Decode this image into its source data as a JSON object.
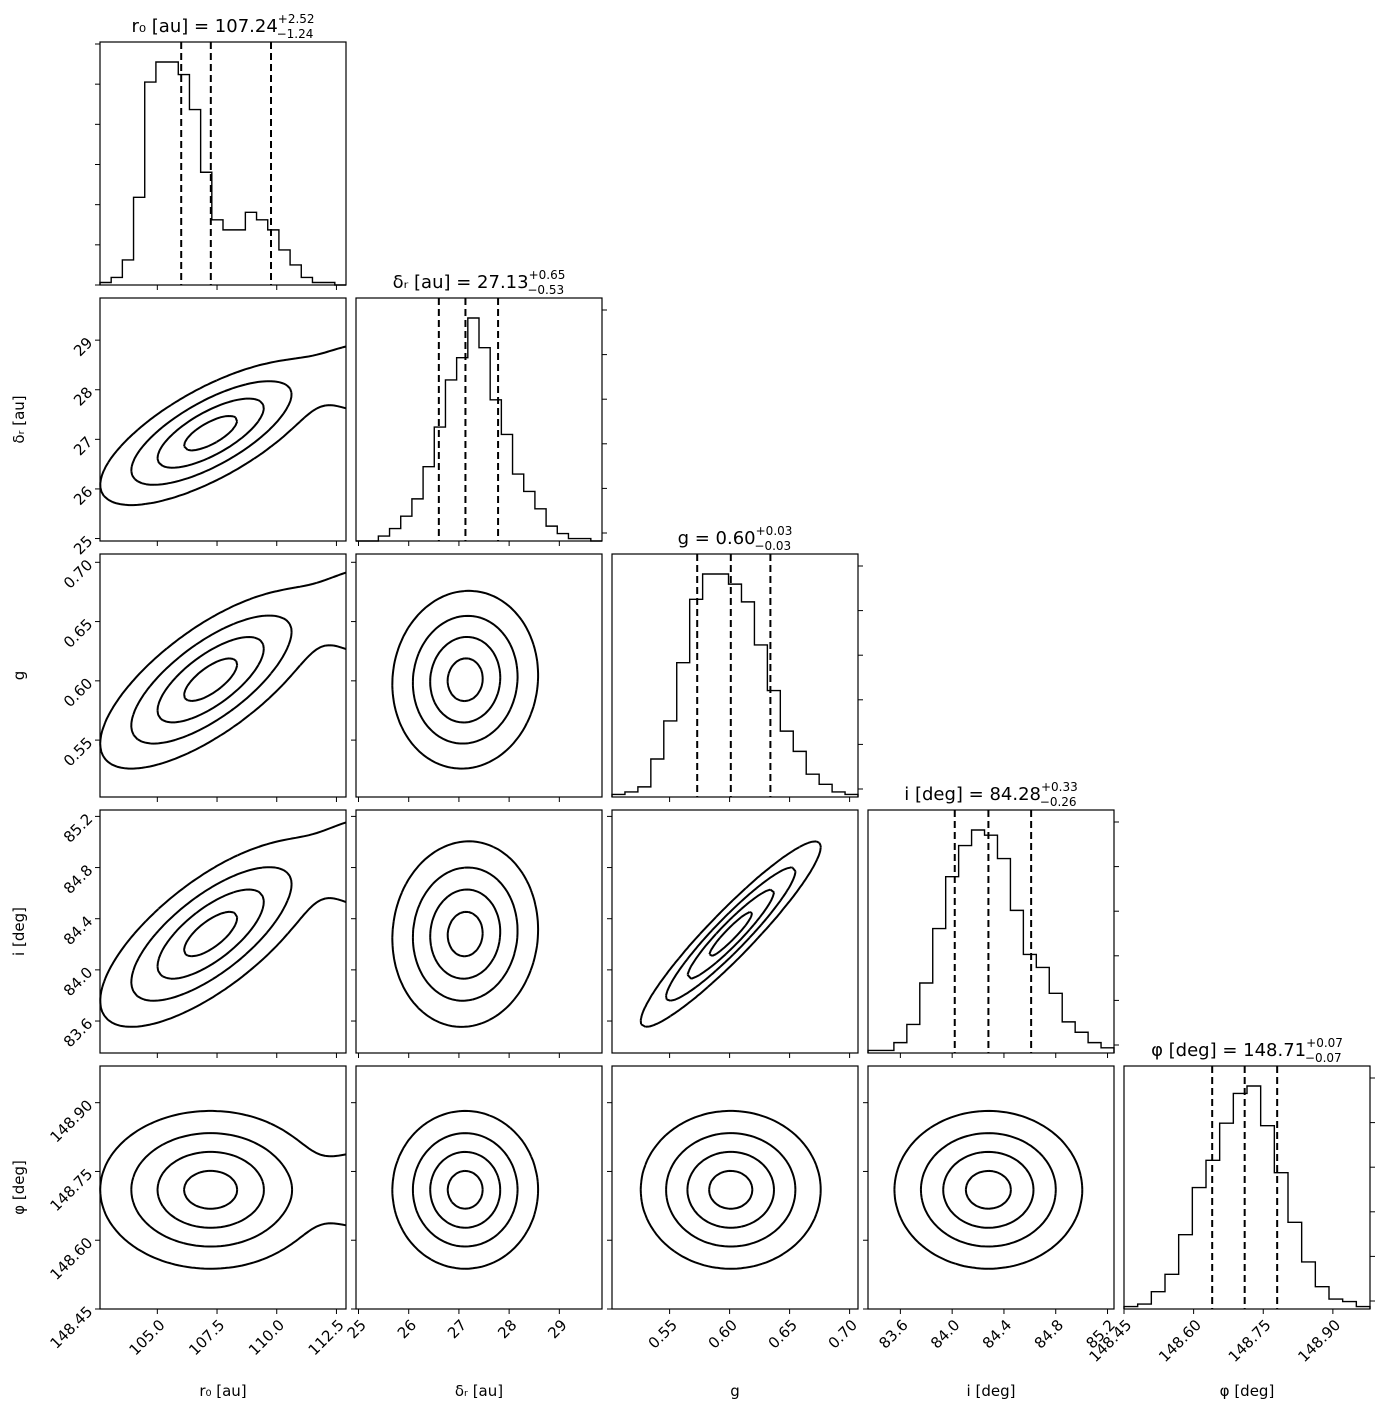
{
  "chart_data": {
    "type": "corner",
    "params": [
      {
        "title": "r₀ [au] = 107.24",
        "sup": "+2.52",
        "sub": "−1.24",
        "xlabel": "r₀ [au]",
        "ylabel": "",
        "range": [
          102.6,
          112.9
        ],
        "ticks": [
          105.0,
          107.5,
          110.0,
          112.5
        ],
        "tick_labels": [
          "105.0",
          "107.5",
          "110.0",
          "112.5"
        ],
        "quantiles": [
          106.0,
          107.24,
          109.76
        ],
        "hist": [
          1,
          3,
          10,
          35,
          81,
          89,
          89,
          84,
          70,
          45,
          26,
          22,
          22,
          29,
          26,
          22,
          14,
          8,
          3,
          1,
          1,
          0
        ]
      },
      {
        "title": "δᵣ [au] = 27.13",
        "sup": "+0.65",
        "sub": "−0.53",
        "xlabel": "δᵣ [au]",
        "ylabel": "δᵣ [au]",
        "range": [
          24.95,
          29.85
        ],
        "ticks": [
          25,
          26,
          27,
          28,
          29
        ],
        "tick_labels": [
          "25",
          "26",
          "27",
          "28",
          "29"
        ],
        "quantiles": [
          26.6,
          27.13,
          27.78
        ],
        "hist": [
          0,
          0,
          2,
          5,
          10,
          17,
          30,
          46,
          65,
          74,
          90,
          78,
          57,
          43,
          27,
          20,
          13,
          6,
          3,
          1,
          1,
          0
        ]
      },
      {
        "title": "g = 0.60",
        "sup": "+0.03",
        "sub": "−0.03",
        "xlabel": "g",
        "ylabel": "g",
        "range": [
          0.502,
          0.707
        ],
        "ticks": [
          0.55,
          0.6,
          0.65,
          0.7
        ],
        "tick_labels": [
          "0.55",
          "0.60",
          "0.65",
          "0.70"
        ],
        "quantiles": [
          0.573,
          0.601,
          0.634
        ],
        "hist": [
          1,
          2,
          4,
          15,
          30,
          53,
          78,
          88,
          88,
          84,
          77,
          60,
          42,
          26,
          18,
          9,
          5,
          2,
          1
        ]
      },
      {
        "title": "i [deg] = 84.28",
        "sup": "+0.33",
        "sub": "−0.26",
        "xlabel": "i [deg]",
        "ylabel": "i [deg]",
        "range": [
          83.35,
          85.25
        ],
        "ticks": [
          83.6,
          84.0,
          84.4,
          84.8,
          85.2
        ],
        "tick_labels": [
          "83.6",
          "84.0",
          "84.4",
          "84.8",
          "85.2"
        ],
        "quantiles": [
          84.02,
          84.28,
          84.61
        ],
        "hist": [
          1,
          1,
          4,
          11,
          27,
          48,
          68,
          80,
          86,
          84,
          75,
          55,
          38,
          33,
          23,
          12,
          8,
          4,
          2
        ]
      },
      {
        "title": "φ [deg] = 148.71",
        "sup": "+0.07",
        "sub": "−0.07",
        "xlabel": "φ [deg]",
        "ylabel": "φ [deg]",
        "range": [
          148.45,
          148.98
        ],
        "ticks": [
          148.45,
          148.6,
          148.75,
          148.9
        ],
        "tick_labels": [
          "148.45",
          "148.60",
          "148.75",
          "148.90"
        ],
        "quantiles": [
          148.64,
          148.71,
          148.78
        ],
        "hist": [
          1,
          2,
          7,
          14,
          30,
          49,
          60,
          75,
          87,
          90,
          74,
          55,
          35,
          19,
          9,
          4,
          3,
          1
        ]
      }
    ],
    "pairs": [
      {
        "row": 1,
        "col": 0,
        "corr": 0.72,
        "shape": "elongated with secondary lobe"
      },
      {
        "row": 2,
        "col": 0,
        "corr": 0.72,
        "shape": "elongated with secondary lobe"
      },
      {
        "row": 2,
        "col": 1,
        "corr": 0.05,
        "shape": "round"
      },
      {
        "row": 3,
        "col": 0,
        "corr": 0.72,
        "shape": "elongated with secondary lobe"
      },
      {
        "row": 3,
        "col": 1,
        "corr": 0.05,
        "shape": "round"
      },
      {
        "row": 3,
        "col": 2,
        "corr": 0.94,
        "shape": "narrow diagonal"
      },
      {
        "row": 4,
        "col": 0,
        "corr": 0.0,
        "shape": "round with secondary lobe"
      },
      {
        "row": 4,
        "col": 1,
        "corr": 0.0,
        "shape": "round"
      },
      {
        "row": 4,
        "col": 2,
        "corr": 0.0,
        "shape": "round"
      },
      {
        "row": 4,
        "col": 3,
        "corr": 0.0,
        "shape": "round"
      }
    ],
    "grid": "off",
    "colors": {
      "ink": "#000000",
      "density_max": "#000000",
      "density_min": "#ffffff"
    }
  }
}
